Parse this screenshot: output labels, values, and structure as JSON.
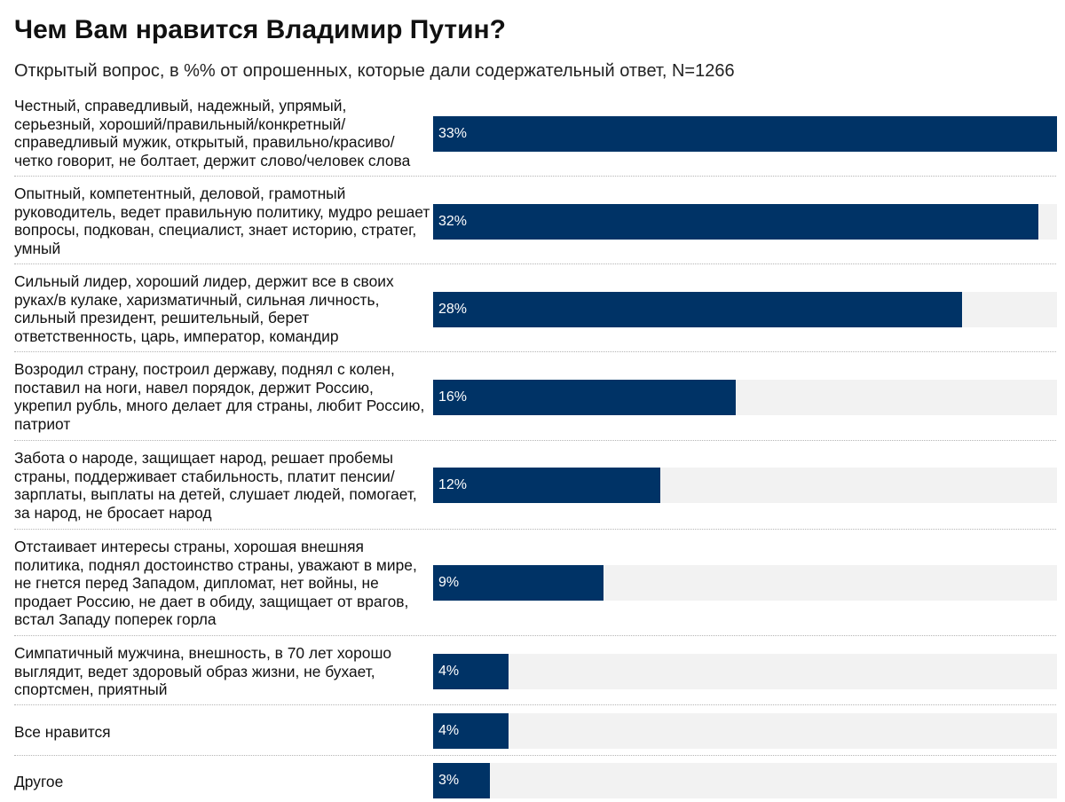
{
  "colors": {
    "bar": "#003366",
    "track": "#f2f2f2"
  },
  "chart_data": {
    "type": "bar",
    "orientation": "horizontal",
    "title": "Чем Вам нравится Владимир Путин?",
    "subtitle": "Открытый вопрос, в %% от опрошенных, которые дали содержательный ответ, N=1266",
    "xlim": [
      0,
      33
    ],
    "value_suffix": "%",
    "grid": false,
    "categories": [
      "Честный, справедливый, надежный, упрямый, серьезный, хороший/правильный/конкретный/ справедливый мужик, открытый, правильно/красиво/ четко говорит, не болтает, держит слово/человек слова",
      "Опытный, компетентный, деловой, грамотный руководитель, ведет правильную политику, мудро решает вопросы, подкован, специалист, знает историю, стратег, умный",
      "Сильный лидер, хороший лидер, держит все в своих руках/в кулаке, харизматичный, сильная личность, сильный президент, решительный, берет ответственность, царь, император, командир",
      "Возродил страну, построил державу, поднял с колен, поставил на ноги, навел порядок, держит Россию, укрепил рубль, много делает для страны, любит Россию, патриот",
      "Забота о народе, защищает народ, решает пробемы страны, поддерживает стабильность, платит пенсии/ зарплаты, выплаты на детей, слушает людей, помогает, за народ, не бросает народ",
      "Отстаивает интересы страны, хорошая внешняя политика, поднял достоинство страны, уважают в мире, не гнется перед Западом, дипломат, нет войны, не продает Россию, не дает в обиду, защищает от врагов, встал Западу поперек горла",
      "Симпатичный мужчина, внешность, в 70 лет хорошо выглядит, ведет здоровый образ жизни, не бухает, спортсмен, приятный",
      "Все нравится",
      "Другое"
    ],
    "values": [
      33,
      32,
      28,
      16,
      12,
      9,
      4,
      4,
      3
    ],
    "value_labels": [
      "33%",
      "32%",
      "28%",
      "16%",
      "12%",
      "9%",
      "4%",
      "4%",
      "3%"
    ]
  }
}
